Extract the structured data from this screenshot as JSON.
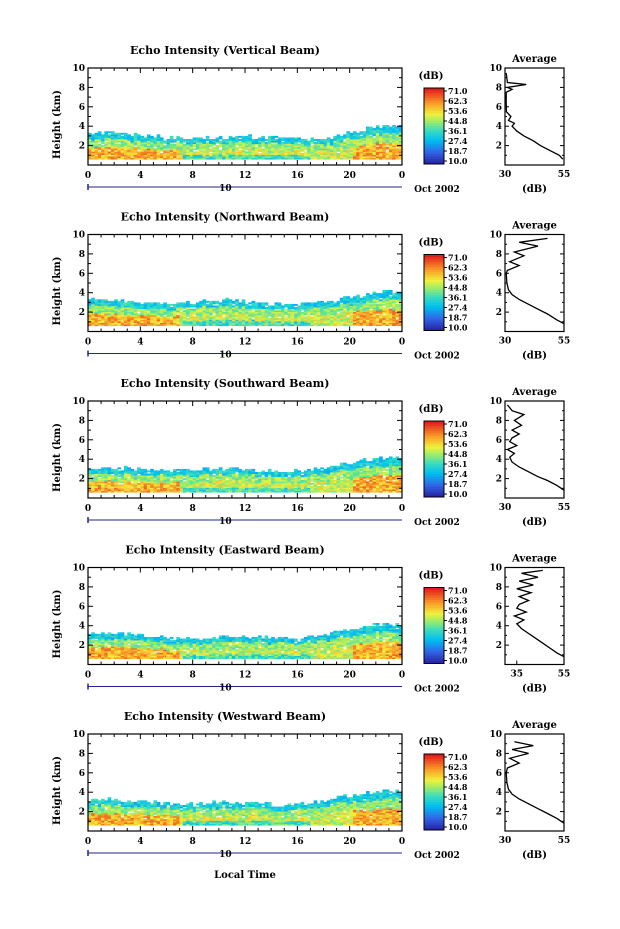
{
  "figure": {
    "xlabel": "Local Time",
    "date_label": "Oct 2002",
    "date_marker": "10",
    "colorbar_unit": "(dB)",
    "colorbar_ticks": [
      "71.0",
      "62.3",
      "53.6",
      "44.8",
      "36.1",
      "27.4",
      "18.7",
      "10.0"
    ],
    "average_title": "Average",
    "average_xlabel": "(dB)",
    "height_label": "Height (km)"
  },
  "chart_data": [
    {
      "type": "heatmap",
      "title": "Echo Intensity (Vertical Beam)",
      "xlabel": "Local Time",
      "ylabel": "Height (km)",
      "xlim": [
        0,
        24
      ],
      "ylim": [
        0,
        10
      ],
      "x_ticks": [
        "0",
        "4",
        "8",
        "12",
        "16",
        "20",
        "0"
      ],
      "y_ticks": [
        "2",
        "4",
        "6",
        "8",
        "10"
      ],
      "color_range": [
        10.0,
        71.0
      ],
      "echo_top_km": [
        3.1,
        3.2,
        3.2,
        3.1,
        3.0,
        2.9,
        2.7,
        2.7,
        2.6,
        2.7,
        2.8,
        2.8,
        2.9,
        2.8,
        2.8,
        2.7,
        2.7,
        2.6,
        2.5,
        2.9,
        3.3,
        3.6,
        3.9,
        4.0
      ],
      "average": {
        "xlim": [
          30,
          55
        ],
        "x_ticks": [
          "30",
          "55"
        ],
        "profile": [
          [
            54.5,
            0.6
          ],
          [
            53.0,
            1.0
          ],
          [
            49.0,
            1.5
          ],
          [
            45.0,
            2.0
          ],
          [
            42.0,
            2.5
          ],
          [
            38.0,
            3.0
          ],
          [
            35.0,
            3.5
          ],
          [
            33.0,
            4.0
          ],
          [
            34.0,
            4.3
          ],
          [
            31.5,
            4.6
          ],
          [
            32.5,
            5.0
          ],
          [
            30.6,
            5.5
          ],
          [
            30.5,
            6.5
          ],
          [
            30.5,
            7.5
          ],
          [
            33.0,
            7.8
          ],
          [
            31.0,
            8.0
          ],
          [
            39.0,
            8.3
          ],
          [
            31.0,
            8.5
          ],
          [
            30.5,
            9.5
          ]
        ]
      }
    },
    {
      "type": "heatmap",
      "title": "Echo Intensity (Northward Beam)",
      "xlabel": "Local Time",
      "ylabel": "Height (km)",
      "xlim": [
        0,
        24
      ],
      "ylim": [
        0,
        10
      ],
      "x_ticks": [
        "0",
        "4",
        "8",
        "12",
        "16",
        "20",
        "0"
      ],
      "y_ticks": [
        "2",
        "4",
        "6",
        "8",
        "10"
      ],
      "color_range": [
        10.0,
        71.0
      ],
      "echo_top_km": [
        3.2,
        3.3,
        3.2,
        3.1,
        3.0,
        2.9,
        2.8,
        2.9,
        2.9,
        3.1,
        3.2,
        3.1,
        3.0,
        2.9,
        2.8,
        2.7,
        2.8,
        2.9,
        3.0,
        3.2,
        3.5,
        3.7,
        3.9,
        4.1
      ],
      "average": {
        "xlim": [
          30,
          55
        ],
        "x_ticks": [
          "30",
          "55"
        ],
        "profile": [
          [
            55.0,
            0.8
          ],
          [
            52.0,
            1.2
          ],
          [
            48.0,
            1.8
          ],
          [
            44.0,
            2.3
          ],
          [
            40.0,
            2.8
          ],
          [
            36.0,
            3.3
          ],
          [
            33.0,
            3.8
          ],
          [
            31.5,
            4.3
          ],
          [
            30.8,
            5.0
          ],
          [
            30.5,
            6.0
          ],
          [
            31.0,
            6.3
          ],
          [
            36.0,
            6.8
          ],
          [
            32.0,
            7.2
          ],
          [
            38.0,
            7.8
          ],
          [
            34.0,
            8.2
          ],
          [
            44.0,
            8.8
          ],
          [
            36.0,
            9.2
          ],
          [
            48.0,
            9.6
          ]
        ]
      }
    },
    {
      "type": "heatmap",
      "title": "Echo Intensity (Southward Beam)",
      "xlabel": "Local Time",
      "ylabel": "Height (km)",
      "xlim": [
        0,
        24
      ],
      "ylim": [
        0,
        10
      ],
      "x_ticks": [
        "0",
        "4",
        "8",
        "12",
        "16",
        "20",
        "0"
      ],
      "y_ticks": [
        "2",
        "4",
        "6",
        "8",
        "10"
      ],
      "color_range": [
        10.0,
        71.0
      ],
      "echo_top_km": [
        3.0,
        3.1,
        3.0,
        3.0,
        2.9,
        2.9,
        2.8,
        2.8,
        2.9,
        2.9,
        3.0,
        3.0,
        2.9,
        2.8,
        2.8,
        2.7,
        2.7,
        2.8,
        3.0,
        3.3,
        3.6,
        3.8,
        4.0,
        4.1
      ],
      "average": {
        "xlim": [
          30,
          55
        ],
        "x_ticks": [
          "30",
          "55"
        ],
        "profile": [
          [
            55.0,
            0.8
          ],
          [
            52.0,
            1.3
          ],
          [
            48.0,
            1.8
          ],
          [
            44.0,
            2.2
          ],
          [
            40.0,
            2.7
          ],
          [
            36.0,
            3.2
          ],
          [
            33.0,
            3.7
          ],
          [
            32.0,
            4.2
          ],
          [
            34.0,
            4.6
          ],
          [
            31.0,
            5.0
          ],
          [
            35.0,
            5.4
          ],
          [
            32.0,
            5.8
          ],
          [
            33.0,
            6.2
          ],
          [
            36.0,
            6.6
          ],
          [
            33.0,
            7.0
          ],
          [
            37.0,
            7.5
          ],
          [
            34.0,
            8.0
          ],
          [
            38.0,
            8.6
          ],
          [
            33.0,
            9.0
          ],
          [
            31.0,
            9.6
          ]
        ]
      }
    },
    {
      "type": "heatmap",
      "title": "Echo Intensity (Eastward Beam)",
      "xlabel": "Local Time",
      "ylabel": "Height (km)",
      "xlim": [
        0,
        24
      ],
      "ylim": [
        0,
        10
      ],
      "x_ticks": [
        "0",
        "4",
        "8",
        "12",
        "16",
        "20",
        "0"
      ],
      "y_ticks": [
        "2",
        "4",
        "6",
        "8",
        "10"
      ],
      "color_range": [
        10.0,
        71.0
      ],
      "echo_top_km": [
        3.0,
        3.1,
        3.2,
        3.1,
        3.0,
        2.9,
        2.7,
        2.6,
        2.6,
        2.7,
        2.8,
        2.9,
        2.8,
        2.8,
        2.7,
        2.6,
        2.6,
        2.7,
        3.0,
        3.3,
        3.6,
        3.8,
        4.0,
        4.1
      ],
      "average": {
        "xlim": [
          30,
          55
        ],
        "x_ticks": [
          "35",
          "55"
        ],
        "profile": [
          [
            55.0,
            0.8
          ],
          [
            52.0,
            1.2
          ],
          [
            49.0,
            1.7
          ],
          [
            46.0,
            2.2
          ],
          [
            43.0,
            2.7
          ],
          [
            40.0,
            3.2
          ],
          [
            37.0,
            3.7
          ],
          [
            35.0,
            4.2
          ],
          [
            38.0,
            4.6
          ],
          [
            34.0,
            5.0
          ],
          [
            39.0,
            5.4
          ],
          [
            35.0,
            5.8
          ],
          [
            36.0,
            6.2
          ],
          [
            40.0,
            6.6
          ],
          [
            36.0,
            7.0
          ],
          [
            41.0,
            7.4
          ],
          [
            35.0,
            7.8
          ],
          [
            42.0,
            8.2
          ],
          [
            36.0,
            8.6
          ],
          [
            44.0,
            9.0
          ],
          [
            37.0,
            9.4
          ],
          [
            46.0,
            9.7
          ]
        ]
      }
    },
    {
      "type": "heatmap",
      "title": "Echo Intensity (Westward Beam)",
      "xlabel": "Local Time",
      "ylabel": "Height (km)",
      "xlim": [
        0,
        24
      ],
      "ylim": [
        0,
        10
      ],
      "x_ticks": [
        "0",
        "4",
        "8",
        "12",
        "16",
        "20",
        "0"
      ],
      "y_ticks": [
        "2",
        "4",
        "6",
        "8",
        "10"
      ],
      "color_range": [
        10.0,
        71.0
      ],
      "echo_top_km": [
        3.1,
        3.2,
        3.2,
        3.1,
        3.0,
        2.9,
        2.8,
        2.7,
        2.7,
        2.8,
        2.9,
        2.9,
        2.8,
        2.8,
        2.7,
        2.6,
        2.7,
        2.8,
        3.1,
        3.4,
        3.6,
        3.8,
        3.9,
        4.0
      ],
      "average": {
        "xlim": [
          30,
          55
        ],
        "x_ticks": [
          "30",
          "55"
        ],
        "profile": [
          [
            55.0,
            0.8
          ],
          [
            52.0,
            1.3
          ],
          [
            48.0,
            1.8
          ],
          [
            44.0,
            2.3
          ],
          [
            40.0,
            2.8
          ],
          [
            36.0,
            3.3
          ],
          [
            33.0,
            3.8
          ],
          [
            31.5,
            4.3
          ],
          [
            30.8,
            5.0
          ],
          [
            30.5,
            6.0
          ],
          [
            31.0,
            6.5
          ],
          [
            36.0,
            7.0
          ],
          [
            32.0,
            7.5
          ],
          [
            40.0,
            8.0
          ],
          [
            33.0,
            8.4
          ],
          [
            42.0,
            8.8
          ],
          [
            34.0,
            9.2
          ]
        ]
      }
    }
  ]
}
